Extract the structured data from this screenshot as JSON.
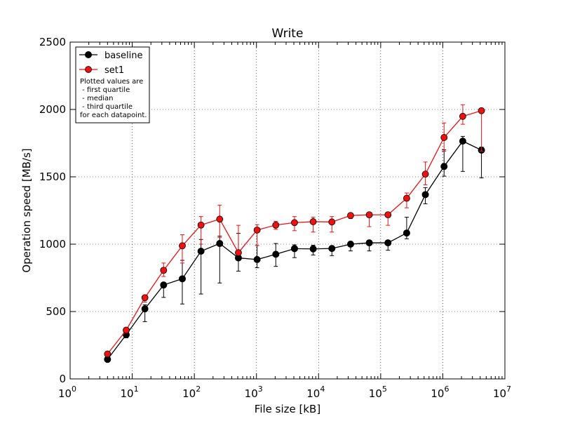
{
  "chart_data": {
    "type": "line",
    "title": "Write",
    "xlabel": "File size [kB]",
    "ylabel": "Operation speed [MB/s]",
    "xscale": "log",
    "xlim": [
      1,
      10000000
    ],
    "ylim": [
      0,
      2500
    ],
    "grid": true,
    "legend_position": "top-left",
    "x_ticks": [
      {
        "base": "10",
        "exp": "0"
      },
      {
        "base": "10",
        "exp": "1"
      },
      {
        "base": "10",
        "exp": "2"
      },
      {
        "base": "10",
        "exp": "3"
      },
      {
        "base": "10",
        "exp": "4"
      },
      {
        "base": "10",
        "exp": "5"
      },
      {
        "base": "10",
        "exp": "6"
      },
      {
        "base": "10",
        "exp": "7"
      }
    ],
    "y_ticks": [
      "0",
      "500",
      "1000",
      "1500",
      "2000",
      "2500"
    ],
    "x": [
      4,
      8,
      16,
      32,
      64,
      128,
      256,
      512,
      1024,
      2048,
      4096,
      8192,
      16384,
      32768,
      65536,
      131072,
      262144,
      524288,
      1048576,
      2097152,
      4194304
    ],
    "series": [
      {
        "name": "baseline",
        "color": "#000000",
        "median": [
          145,
          328,
          520,
          697,
          743,
          948,
          1005,
          898,
          886,
          925,
          967,
          965,
          968,
          1000,
          1010,
          1010,
          1083,
          1368,
          1577,
          1765,
          1698
        ],
        "q1": [
          140,
          305,
          425,
          605,
          556,
          630,
          712,
          800,
          825,
          835,
          900,
          920,
          915,
          950,
          950,
          955,
          1040,
          1300,
          1505,
          1540,
          1492
        ],
        "q3": [
          150,
          350,
          550,
          700,
          880,
          1035,
          1060,
          1080,
          990,
          1005,
          995,
          992,
          985,
          1020,
          1015,
          1015,
          1200,
          1420,
          1700,
          1800,
          1720
        ]
      },
      {
        "name": "set1",
        "color": "#ee1111",
        "median": [
          185,
          362,
          603,
          806,
          988,
          1142,
          1186,
          937,
          1105,
          1142,
          1160,
          1167,
          1165,
          1213,
          1218,
          1218,
          1341,
          1520,
          1792,
          1949,
          1991
        ],
        "q1": [
          180,
          340,
          570,
          760,
          860,
          1000,
          1050,
          920,
          990,
          1110,
          1100,
          1090,
          1090,
          1190,
          1130,
          1140,
          1270,
          1440,
          1690,
          1890,
          1690
        ],
        "q3": [
          190,
          370,
          610,
          860,
          1070,
          1205,
          1290,
          1140,
          1145,
          1170,
          1205,
          1200,
          1205,
          1220,
          1225,
          1220,
          1380,
          1610,
          1900,
          2035,
          2000
        ]
      }
    ],
    "annotation": [
      "Plotted values are",
      " - first quartile",
      " - median",
      " - third quartile",
      "for each datapoint."
    ]
  }
}
